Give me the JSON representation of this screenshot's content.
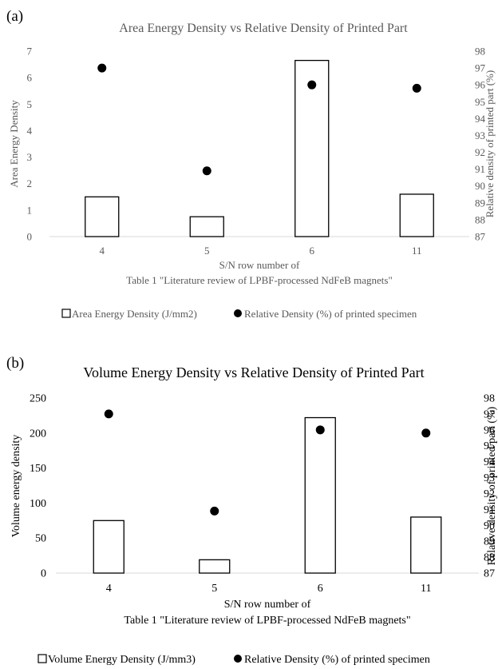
{
  "chart_data": [
    {
      "panel_label": "(a)",
      "type": "bar",
      "title": "Area Energy Density vs Relative Density of Printed Part",
      "categories": [
        "4",
        "5",
        "6",
        "11"
      ],
      "xlabel": [
        "S/N row number of",
        "Table 1 \"Literature review of LPBF-processed NdFeB magnets\""
      ],
      "ylabel": "Area Energy Density",
      "y2label": "Relative density of printed part (%)",
      "ylim": [
        0,
        7
      ],
      "yticks": [
        0,
        1,
        2,
        3,
        4,
        5,
        6,
        7
      ],
      "y2lim": [
        87,
        98
      ],
      "y2ticks": [
        87,
        88,
        89,
        90,
        91,
        92,
        93,
        94,
        95,
        96,
        97,
        98
      ],
      "grid": false,
      "legend_position": "bottom",
      "series": [
        {
          "name": "Area Energy Density (J/mm2)",
          "kind": "bar",
          "axis": "left",
          "values": [
            1.5,
            0.75,
            6.65,
            1.6
          ]
        },
        {
          "name": "Relative Density (%) of printed specimen",
          "kind": "scatter",
          "axis": "right",
          "values": [
            97.0,
            90.9,
            96.0,
            95.8
          ]
        }
      ]
    },
    {
      "panel_label": "(b)",
      "type": "bar",
      "title": "Volume Energy Density vs Relative Density of Printed Part",
      "categories": [
        "4",
        "5",
        "6",
        "11"
      ],
      "xlabel": [
        "S/N row number of",
        "Table 1 \"Literature review of LPBF-processed NdFeB magnets\""
      ],
      "ylabel": "Volume energy density",
      "y2label": "Relative density of printed part (%)",
      "ylim": [
        0,
        250
      ],
      "yticks": [
        0,
        50,
        100,
        150,
        200,
        250
      ],
      "y2lim": [
        87,
        98
      ],
      "y2ticks": [
        87,
        88,
        89,
        90,
        91,
        92,
        93,
        94,
        95,
        96,
        97,
        98
      ],
      "grid": false,
      "legend_position": "bottom",
      "series": [
        {
          "name": "Volume Energy Density (J/mm3)",
          "kind": "bar",
          "axis": "left",
          "values": [
            75,
            19,
            222,
            80
          ]
        },
        {
          "name": "Relative Density (%) of printed specimen",
          "kind": "scatter",
          "axis": "right",
          "values": [
            97.0,
            90.9,
            96.0,
            95.8
          ]
        }
      ]
    }
  ]
}
